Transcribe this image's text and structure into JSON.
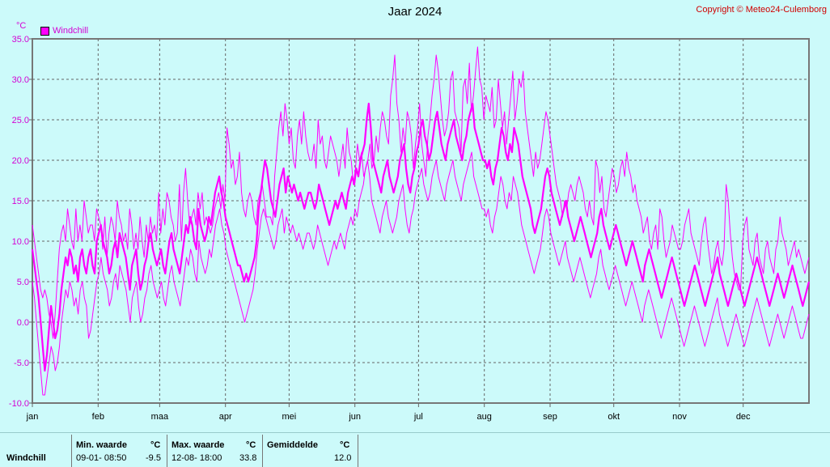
{
  "header": {
    "title": "Jaar 2024",
    "copyright": "Copyright © Meteo24-Culemborg"
  },
  "chart_data": {
    "type": "line",
    "unit_label": "°C",
    "legend": [
      "Windchill"
    ],
    "ylim": [
      -10,
      35
    ],
    "y_ticks": [
      "-10.0",
      "-5.0",
      "0.0",
      "5.0",
      "10.0",
      "15.0",
      "20.0",
      "25.0",
      "30.0",
      "35.0"
    ],
    "x_ticks": [
      "jan",
      "feb",
      "maa",
      "apr",
      "mei",
      "jun",
      "jul",
      "aug",
      "sep",
      "okt",
      "nov",
      "dec"
    ],
    "x_tick_days": [
      0,
      31,
      60,
      91,
      121,
      152,
      182,
      213,
      244,
      274,
      305,
      335
    ],
    "days_in_year": 366,
    "grid": true,
    "color": "#ff00ff",
    "series": [
      {
        "name": "Windchill (max)",
        "style": "thin",
        "values": [
          12,
          10,
          8,
          6,
          4,
          3,
          4,
          3,
          1,
          0,
          -2,
          1,
          5,
          9,
          11,
          12,
          10,
          14,
          12,
          10,
          9,
          14,
          10,
          12,
          10,
          15,
          13,
          11,
          12,
          12,
          10,
          14,
          13,
          12,
          9,
          13,
          8,
          11,
          13,
          12,
          10,
          15,
          13,
          12,
          10,
          11,
          9,
          14,
          12,
          9,
          11,
          9,
          13,
          10,
          8,
          12,
          10,
          13,
          11,
          12,
          10,
          16,
          11,
          14,
          12,
          16,
          15,
          13,
          12,
          10,
          11,
          17,
          10,
          16,
          19,
          15,
          12,
          13,
          14,
          12,
          16,
          14,
          16,
          12,
          13,
          12,
          11,
          12,
          14,
          15,
          16,
          14,
          17,
          15,
          24,
          22,
          19,
          20,
          17,
          18,
          21,
          16,
          14,
          13,
          15,
          16,
          15,
          13,
          12,
          15,
          16,
          17,
          15,
          13,
          13,
          13,
          12,
          18,
          21,
          24,
          26,
          23,
          27,
          25,
          22,
          24,
          20,
          19,
          23,
          25,
          22,
          26,
          23,
          21,
          20,
          20,
          22,
          19,
          25,
          22,
          23,
          20,
          19,
          21,
          23,
          22,
          21,
          20,
          18,
          20,
          22,
          19,
          24,
          21,
          20,
          17,
          19,
          22,
          20,
          21,
          18,
          19,
          20,
          22,
          19,
          20,
          23,
          21,
          24,
          26,
          25,
          23,
          22,
          28,
          30,
          33,
          27,
          25,
          21,
          24,
          22,
          26,
          25,
          23,
          19,
          22,
          24,
          27,
          22,
          20,
          18,
          23,
          25,
          28,
          30,
          33,
          31,
          28,
          25,
          23,
          24,
          26,
          30,
          31,
          26,
          25,
          24,
          21,
          29,
          30,
          27,
          32,
          26,
          28,
          31,
          34,
          30,
          29,
          25,
          28,
          27,
          26,
          29,
          24,
          25,
          30,
          27,
          24,
          26,
          22,
          25,
          28,
          31,
          25,
          27,
          30,
          29,
          31,
          26,
          24,
          22,
          20,
          18,
          21,
          19,
          20,
          22,
          24,
          26,
          25,
          23,
          21,
          19,
          17,
          16,
          15,
          13,
          15,
          14,
          16,
          17,
          16,
          15,
          17,
          18,
          17,
          16,
          14,
          13,
          15,
          13,
          12,
          20,
          19,
          16,
          18,
          14,
          13,
          15,
          17,
          19,
          18,
          16,
          17,
          19,
          20,
          18,
          21,
          19,
          18,
          16,
          17,
          15,
          14,
          13,
          11,
          12,
          13,
          10,
          9,
          11,
          12,
          9,
          14,
          13,
          10,
          8,
          9,
          10,
          12,
          11,
          10,
          9,
          9,
          10,
          12,
          13,
          14,
          11,
          10,
          9,
          8,
          7,
          10,
          12,
          13,
          10,
          8,
          6,
          7,
          9,
          10,
          8,
          7,
          9,
          17,
          15,
          11,
          8,
          6,
          5,
          4,
          4,
          10,
          12,
          13,
          9,
          8,
          7,
          10,
          11,
          8,
          7,
          6,
          9,
          10,
          8,
          7,
          6,
          9,
          10,
          13,
          11,
          10,
          9,
          7,
          8,
          9,
          10,
          8,
          9,
          8,
          7,
          6,
          7,
          8
        ]
      },
      {
        "name": "Windchill (gem)",
        "style": "thick",
        "values": [
          9,
          7,
          5,
          3,
          0,
          -3,
          -6,
          -4,
          -1,
          2,
          0,
          -2,
          -1,
          1,
          4,
          6,
          8,
          7,
          9,
          8,
          6,
          7,
          5,
          8,
          9,
          7,
          6,
          8,
          9,
          7,
          6,
          10,
          11,
          12,
          10,
          9,
          8,
          6,
          7,
          9,
          10,
          8,
          11,
          10,
          9,
          8,
          6,
          4,
          7,
          8,
          9,
          6,
          4,
          5,
          7,
          8,
          10,
          11,
          9,
          8,
          7,
          8,
          9,
          7,
          6,
          8,
          10,
          11,
          9,
          8,
          7,
          6,
          8,
          10,
          12,
          11,
          13,
          12,
          10,
          9,
          14,
          12,
          11,
          10,
          11,
          13,
          12,
          14,
          16,
          17,
          18,
          16,
          15,
          13,
          12,
          11,
          10,
          9,
          8,
          7,
          7,
          6,
          5,
          6,
          5,
          6,
          7,
          8,
          10,
          14,
          16,
          18,
          20,
          19,
          17,
          15,
          14,
          13,
          15,
          17,
          18,
          19,
          16,
          18,
          17,
          16,
          17,
          16,
          15,
          16,
          15,
          14,
          15,
          16,
          16,
          15,
          14,
          15,
          17,
          16,
          15,
          14,
          13,
          12,
          13,
          14,
          15,
          14,
          15,
          16,
          15,
          14,
          16,
          17,
          18,
          17,
          19,
          18,
          20,
          21,
          22,
          25,
          27,
          24,
          20,
          19,
          18,
          17,
          16,
          18,
          19,
          20,
          18,
          17,
          16,
          17,
          18,
          20,
          21,
          22,
          19,
          17,
          16,
          18,
          19,
          21,
          22,
          24,
          25,
          23,
          22,
          20,
          21,
          23,
          25,
          26,
          24,
          22,
          21,
          20,
          22,
          23,
          24,
          25,
          23,
          22,
          21,
          20,
          22,
          23,
          25,
          26,
          27,
          24,
          23,
          22,
          21,
          20,
          20,
          19,
          20,
          18,
          17,
          19,
          20,
          22,
          24,
          23,
          21,
          20,
          22,
          21,
          24,
          23,
          22,
          20,
          18,
          17,
          16,
          15,
          14,
          12,
          11,
          12,
          13,
          14,
          16,
          18,
          19,
          18,
          16,
          15,
          14,
          13,
          12,
          13,
          14,
          15,
          13,
          12,
          11,
          10,
          11,
          12,
          13,
          12,
          11,
          10,
          9,
          8,
          9,
          10,
          11,
          13,
          14,
          12,
          11,
          10,
          9,
          10,
          11,
          12,
          11,
          10,
          9,
          8,
          7,
          8,
          9,
          10,
          9,
          8,
          7,
          6,
          5,
          7,
          8,
          9,
          8,
          7,
          6,
          5,
          4,
          3,
          4,
          5,
          6,
          7,
          8,
          7,
          6,
          5,
          4,
          3,
          2,
          3,
          4,
          5,
          6,
          7,
          6,
          5,
          4,
          3,
          2,
          3,
          4,
          5,
          6,
          7,
          8,
          6,
          5,
          4,
          3,
          2,
          3,
          4,
          5,
          6,
          5,
          4,
          3,
          2,
          3,
          4,
          5,
          6,
          7,
          8,
          7,
          6,
          5,
          4,
          3,
          2,
          3,
          4,
          5,
          6,
          5,
          4,
          3,
          4,
          5,
          6,
          7,
          6,
          5,
          4,
          3,
          2,
          3,
          4,
          5
        ]
      },
      {
        "name": "Windchill (min)",
        "style": "thin",
        "values": [
          5,
          3,
          0,
          -3,
          -6,
          -9,
          -9,
          -7,
          -5,
          -3,
          -4,
          -6,
          -5,
          -3,
          0,
          2,
          4,
          3,
          5,
          4,
          2,
          3,
          1,
          4,
          5,
          3,
          2,
          -2,
          -1,
          1,
          3,
          5,
          6,
          8,
          6,
          5,
          4,
          2,
          3,
          5,
          6,
          4,
          7,
          6,
          5,
          4,
          2,
          0,
          3,
          4,
          5,
          2,
          0,
          1,
          3,
          4,
          6,
          7,
          5,
          4,
          3,
          4,
          5,
          3,
          2,
          4,
          6,
          7,
          5,
          4,
          3,
          2,
          4,
          6,
          8,
          7,
          9,
          8,
          6,
          5,
          10,
          8,
          7,
          6,
          7,
          9,
          8,
          10,
          12,
          13,
          14,
          12,
          11,
          9,
          8,
          7,
          6,
          5,
          4,
          3,
          2,
          1,
          0,
          1,
          2,
          3,
          4,
          6,
          9,
          11,
          13,
          14,
          13,
          12,
          11,
          10,
          9,
          10,
          12,
          13,
          14,
          11,
          13,
          12,
          11,
          12,
          11,
          10,
          11,
          10,
          9,
          10,
          11,
          11,
          10,
          9,
          10,
          12,
          11,
          10,
          9,
          8,
          7,
          8,
          9,
          10,
          9,
          10,
          11,
          10,
          9,
          11,
          12,
          13,
          12,
          14,
          13,
          15,
          16,
          17,
          19,
          20,
          18,
          15,
          14,
          13,
          12,
          11,
          13,
          14,
          15,
          13,
          12,
          11,
          12,
          13,
          15,
          16,
          17,
          14,
          12,
          11,
          13,
          14,
          16,
          17,
          18,
          19,
          17,
          16,
          15,
          16,
          18,
          19,
          20,
          18,
          17,
          16,
          15,
          17,
          18,
          19,
          20,
          18,
          17,
          16,
          15,
          17,
          18,
          19,
          20,
          21,
          18,
          17,
          16,
          15,
          14,
          14,
          13,
          14,
          12,
          11,
          13,
          14,
          16,
          18,
          17,
          15,
          14,
          16,
          15,
          18,
          17,
          16,
          14,
          12,
          11,
          10,
          9,
          8,
          7,
          6,
          7,
          8,
          9,
          11,
          13,
          14,
          13,
          11,
          10,
          9,
          8,
          7,
          8,
          9,
          10,
          8,
          7,
          6,
          5,
          6,
          7,
          8,
          7,
          6,
          5,
          4,
          3,
          4,
          5,
          6,
          8,
          9,
          7,
          6,
          5,
          4,
          5,
          6,
          7,
          6,
          5,
          4,
          3,
          2,
          3,
          4,
          5,
          4,
          3,
          2,
          1,
          0,
          2,
          3,
          4,
          3,
          2,
          1,
          0,
          -1,
          -2,
          -1,
          0,
          1,
          2,
          3,
          2,
          1,
          0,
          -1,
          -2,
          -3,
          -2,
          -1,
          0,
          1,
          2,
          1,
          0,
          -1,
          -2,
          -3,
          -2,
          -1,
          0,
          1,
          2,
          3,
          1,
          0,
          -1,
          -2,
          -3,
          -2,
          -1,
          0,
          1,
          0,
          -1,
          -2,
          -3,
          -2,
          -1,
          0,
          1,
          2,
          3,
          2,
          1,
          0,
          -1,
          -2,
          -3,
          -2,
          -1,
          0,
          1,
          0,
          -1,
          -2,
          -1,
          0,
          1,
          2,
          1,
          0,
          -1,
          -2,
          -2,
          -1,
          0,
          1
        ]
      }
    ]
  },
  "stats": {
    "row_label": "Windchill",
    "min_header": "Min. waarde",
    "unit": "°C",
    "min_when": "09-01-  08:50",
    "min_value": "-9.5",
    "max_header": "Max. waarde",
    "max_when": "12-08-  18:00",
    "max_value": "33.8",
    "avg_header": "Gemiddelde",
    "avg_value": "12.0"
  }
}
